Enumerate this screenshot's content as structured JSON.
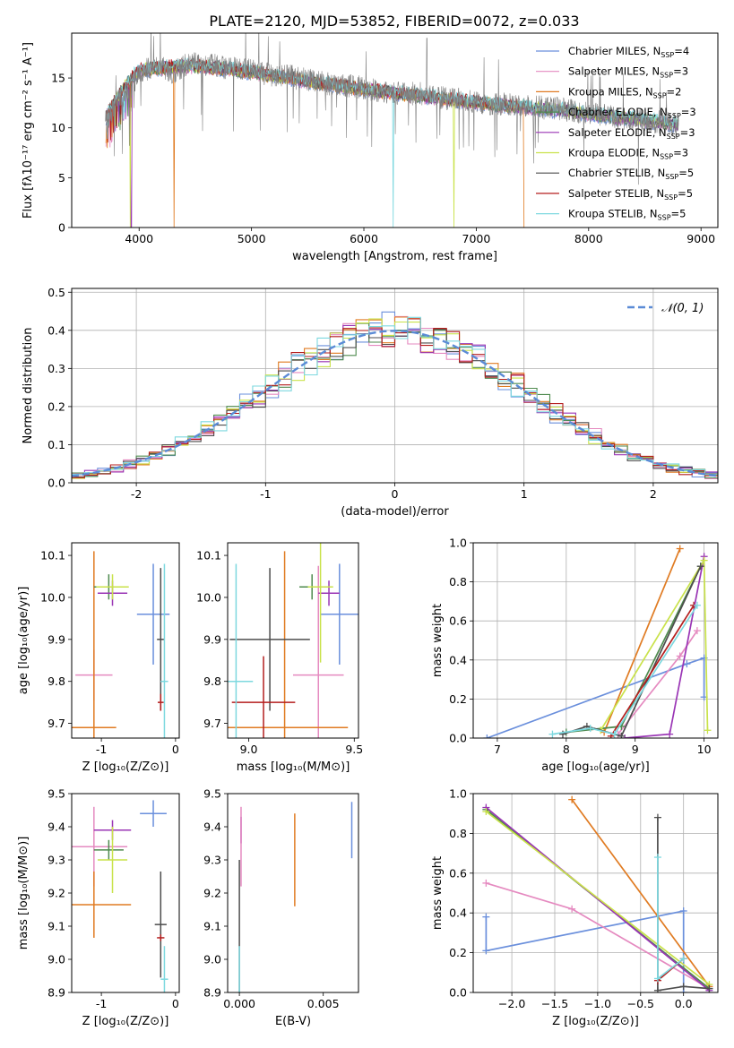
{
  "figure_title": "PLATE=2120, MJD=53852, FIBERID=0072, z=0.033",
  "colors": {
    "Chabrier MILES": "#6a8fdc",
    "Salpeter MILES": "#e58ac0",
    "Kroupa MILES": "#e07b22",
    "Chabrier ELODIE": "#4e8a4e",
    "Salpeter ELODIE": "#9a35b5",
    "Kroupa ELODIE": "#c9e24a",
    "Chabrier STELIB": "#4d4d4d",
    "Salpeter STELIB": "#b41e1e",
    "Kroupa STELIB": "#7dd8df"
  },
  "chart_data": [
    {
      "type": "line",
      "title": "PLATE=2120, MJD=53852, FIBERID=0072, z=0.033",
      "xlabel": "wavelength [Angstrom, rest frame]",
      "ylabel": "Flux [fλ10⁻¹⁷ erg cm⁻² s⁻¹ A⁻¹]",
      "xlim": [
        3400,
        9150
      ],
      "ylim": [
        0,
        19.5
      ],
      "xticks": [
        4000,
        5000,
        6000,
        7000,
        8000,
        9000
      ],
      "yticks": [
        0,
        5,
        10,
        15
      ],
      "legend_position": "top-right",
      "legend": [
        "Chabrier MILES, N_SSP=4",
        "Salpeter MILES, N_SSP=3",
        "Kroupa MILES, N_SSP=2",
        "Chabrier ELODIE, N_SSP=3",
        "Salpeter ELODIE, N_SSP=3",
        "Kroupa ELODIE, N_SSP=3",
        "Chabrier STELIB, N_SSP=5",
        "Salpeter STELIB, N_SSP=5",
        "Kroupa STELIB, N_SSP=5"
      ],
      "observed_spectrum": {
        "x": [
          3700,
          3800,
          3900,
          4000,
          4100,
          4200,
          4300,
          4400,
          4500,
          4600,
          4700,
          4800,
          4900,
          5000,
          5100,
          5200,
          5300,
          5400,
          5500,
          5600,
          5700,
          5800,
          5900,
          6000,
          6100,
          6200,
          6300,
          6400,
          6500,
          6600,
          6700,
          6800,
          6900,
          7000,
          7100,
          7200,
          7300,
          7400,
          7500,
          7600,
          7700,
          7800,
          7900,
          8000,
          8100,
          8200,
          8300,
          8400,
          8500,
          8600,
          8700,
          8800
        ],
        "y": [
          10.5,
          12.5,
          13.5,
          15.5,
          16.0,
          16.2,
          15.5,
          16.3,
          16.5,
          16.3,
          16.2,
          16.0,
          16.0,
          15.8,
          15.5,
          15.2,
          15.3,
          15.0,
          14.8,
          14.6,
          14.4,
          14.2,
          14.2,
          14.0,
          13.8,
          13.6,
          13.5,
          13.4,
          13.5,
          13.2,
          13.0,
          12.9,
          12.8,
          12.6,
          12.4,
          12.4,
          12.3,
          12.2,
          12.2,
          12.0,
          12.0,
          11.8,
          11.6,
          11.5,
          11.4,
          11.2,
          11.0,
          11.0,
          10.8,
          10.6,
          10.5,
          10.2
        ]
      },
      "model_spectrum": {
        "x": [
          3700,
          3800,
          3900,
          4000,
          4200,
          4400,
          4600,
          4800,
          5000,
          5200,
          5400,
          5600,
          5800,
          6000,
          6200,
          6400,
          6600,
          6800,
          7000,
          7200,
          7400,
          7600,
          7800,
          8000,
          8200,
          8400,
          8600,
          8800
        ],
        "y": [
          11.0,
          13.0,
          14.5,
          15.8,
          16.0,
          16.2,
          16.1,
          15.9,
          15.6,
          15.2,
          14.9,
          14.5,
          14.2,
          13.9,
          13.6,
          13.3,
          13.1,
          12.8,
          12.5,
          12.3,
          12.1,
          11.9,
          11.7,
          11.4,
          11.1,
          10.9,
          10.6,
          10.3
        ]
      }
    },
    {
      "type": "line",
      "xlabel": "(data-model)/error",
      "ylabel": "Normed distribution",
      "xlim": [
        -2.5,
        2.5
      ],
      "ylim": [
        0,
        0.51
      ],
      "xticks": [
        -2,
        -1,
        0,
        1,
        2
      ],
      "yticks": [
        0.0,
        0.1,
        0.2,
        0.3,
        0.4,
        0.5
      ],
      "grid": true,
      "legend_position": "top-right",
      "legend": [
        "𝒩(0, 1)"
      ],
      "reference_curve": "normal(0,1)",
      "histogram_bin_width": 0.1,
      "histogram_bins_x": [
        -2.5,
        -2.4,
        -2.3,
        -2.2,
        -2.1,
        -2.0,
        -1.9,
        -1.8,
        -1.7,
        -1.6,
        -1.5,
        -1.4,
        -1.3,
        -1.2,
        -1.1,
        -1.0,
        -0.9,
        -0.8,
        -0.7,
        -0.6,
        -0.5,
        -0.4,
        -0.3,
        -0.2,
        -0.1,
        0.0,
        0.1,
        0.2,
        0.3,
        0.4,
        0.5,
        0.6,
        0.7,
        0.8,
        0.9,
        1.0,
        1.1,
        1.2,
        1.3,
        1.4,
        1.5,
        1.6,
        1.7,
        1.8,
        1.9,
        2.0,
        2.1,
        2.2,
        2.3,
        2.4
      ]
    },
    {
      "type": "scatter",
      "xlabel": "Z [log₁₀(Z/Z⊙)]",
      "ylabel": "age  [log₁₀(age/yr)]",
      "xlim": [
        -1.4,
        0.05
      ],
      "ylim": [
        9.665,
        10.13
      ],
      "xticks": [
        -1,
        0
      ],
      "yticks": [
        9.7,
        9.8,
        9.9,
        10.0,
        10.1
      ],
      "points": [
        {
          "model": "Chabrier MILES",
          "x": -0.3,
          "y": 9.96,
          "xerr": 0.22,
          "yerr": 0.12
        },
        {
          "model": "Salpeter MILES",
          "x": -1.1,
          "y": 9.815,
          "xerr": 0.25,
          "yerr": 0.06
        },
        {
          "model": "Kroupa MILES",
          "x": -1.1,
          "y": 9.69,
          "xerr": 0.3,
          "yerr": 0.42
        },
        {
          "model": "Chabrier ELODIE",
          "x": -0.9,
          "y": 10.025,
          "xerr": 0.2,
          "yerr": 0.03
        },
        {
          "model": "Salpeter ELODIE",
          "x": -0.85,
          "y": 10.01,
          "xerr": 0.2,
          "yerr": 0.03
        },
        {
          "model": "Kroupa ELODIE",
          "x": -0.85,
          "y": 10.025,
          "xerr": 0.22,
          "yerr": 0.03
        },
        {
          "model": "Chabrier STELIB",
          "x": -0.2,
          "y": 9.9,
          "xerr": 0.05,
          "yerr": 0.17
        },
        {
          "model": "Salpeter STELIB",
          "x": -0.2,
          "y": 9.75,
          "xerr": 0.04,
          "yerr": 0.02
        },
        {
          "model": "Kroupa STELIB",
          "x": -0.15,
          "y": 9.8,
          "xerr": 0.05,
          "yerr": 0.28
        }
      ]
    },
    {
      "type": "scatter",
      "xlabel": "mass [log₁₀(M/M⊙)]",
      "ylabel": "",
      "xlim": [
        8.9,
        9.52
      ],
      "ylim": [
        9.665,
        10.13
      ],
      "xticks": [
        9.0,
        9.5
      ],
      "yticks": [
        9.7,
        9.8,
        9.9,
        10.0,
        10.1
      ],
      "points": [
        {
          "model": "Chabrier MILES",
          "x": 9.43,
          "y": 9.96,
          "xerr": 0.09,
          "yerr": 0.12
        },
        {
          "model": "Salpeter MILES",
          "x": 9.33,
          "y": 9.815,
          "xerr": 0.12,
          "yerr": 0.26
        },
        {
          "model": "Kroupa MILES",
          "x": 9.17,
          "y": 9.69,
          "xerr": 0.3,
          "yerr": 0.42
        },
        {
          "model": "Chabrier ELODIE",
          "x": 9.3,
          "y": 10.025,
          "xerr": 0.06,
          "yerr": 0.03
        },
        {
          "model": "Salpeter ELODIE",
          "x": 9.38,
          "y": 10.01,
          "xerr": 0.05,
          "yerr": 0.03
        },
        {
          "model": "Kroupa ELODIE",
          "x": 9.34,
          "y": 10.025,
          "xerr": 0.06,
          "yerr": 0.18
        },
        {
          "model": "Chabrier STELIB",
          "x": 9.1,
          "y": 9.9,
          "xerr": 0.19,
          "yerr": 0.17
        },
        {
          "model": "Salpeter STELIB",
          "x": 9.07,
          "y": 9.75,
          "xerr": 0.15,
          "yerr": 0.11
        },
        {
          "model": "Kroupa STELIB",
          "x": 8.94,
          "y": 9.8,
          "xerr": 0.08,
          "yerr": 0.28
        }
      ]
    },
    {
      "type": "line",
      "xlabel": "age  [log₁₀(age/yr)]",
      "ylabel": "mass weight",
      "xlim": [
        6.65,
        10.2
      ],
      "ylim": [
        0,
        1.0
      ],
      "xticks": [
        7,
        8,
        9,
        10
      ],
      "yticks": [
        0.0,
        0.2,
        0.4,
        0.6,
        0.8,
        1.0
      ],
      "grid": true,
      "series": [
        {
          "model": "Chabrier MILES",
          "x": [
            6.85,
            9.75,
            10.0,
            10.0
          ],
          "y": [
            0.0,
            0.38,
            0.41,
            0.21
          ]
        },
        {
          "model": "Salpeter MILES",
          "x": [
            8.75,
            9.65,
            9.9
          ],
          "y": [
            0.02,
            0.42,
            0.55
          ]
        },
        {
          "model": "Kroupa MILES",
          "x": [
            8.55,
            9.65
          ],
          "y": [
            0.03,
            0.97
          ]
        },
        {
          "model": "Chabrier ELODIE",
          "x": [
            8.0,
            8.8,
            9.95
          ],
          "y": [
            0.03,
            0.06,
            0.88
          ]
        },
        {
          "model": "Salpeter ELODIE",
          "x": [
            8.85,
            9.5,
            10.0
          ],
          "y": [
            0.0,
            0.02,
            0.93
          ]
        },
        {
          "model": "Kroupa ELODIE",
          "x": [
            8.5,
            10.0,
            10.05
          ],
          "y": [
            0.04,
            0.91,
            0.04
          ]
        },
        {
          "model": "Chabrier STELIB",
          "x": [
            7.95,
            8.3,
            8.8,
            9.95
          ],
          "y": [
            0.02,
            0.06,
            0.01,
            0.88
          ]
        },
        {
          "model": "Salpeter STELIB",
          "x": [
            8.65,
            9.85
          ],
          "y": [
            0.01,
            0.68
          ]
        },
        {
          "model": "Kroupa STELIB",
          "x": [
            7.8,
            8.35,
            8.7,
            9.9
          ],
          "y": [
            0.02,
            0.05,
            0.02,
            0.68
          ]
        }
      ]
    },
    {
      "type": "scatter",
      "xlabel": "Z [log₁₀(Z/Z⊙)]",
      "ylabel": "mass [log₁₀(M/M⊙)]",
      "xlim": [
        -1.4,
        0.05
      ],
      "ylim": [
        8.9,
        9.5
      ],
      "xticks": [
        -1,
        0
      ],
      "yticks": [
        8.9,
        9.0,
        9.1,
        9.2,
        9.3,
        9.4,
        9.5
      ],
      "points": [
        {
          "model": "Chabrier MILES",
          "x": -0.3,
          "y": 9.44,
          "xerr": 0.18,
          "yerr": 0.04
        },
        {
          "model": "Salpeter MILES",
          "x": -1.1,
          "y": 9.34,
          "xerr": 0.45,
          "yerr": 0.12
        },
        {
          "model": "Kroupa MILES",
          "x": -1.1,
          "y": 9.165,
          "xerr": 0.5,
          "yerr": 0.1
        },
        {
          "model": "Chabrier ELODIE",
          "x": -0.9,
          "y": 9.33,
          "xerr": 0.2,
          "yerr": 0.03
        },
        {
          "model": "Salpeter ELODIE",
          "x": -0.85,
          "y": 9.39,
          "xerr": 0.25,
          "yerr": 0.03
        },
        {
          "model": "Kroupa ELODIE",
          "x": -0.85,
          "y": 9.3,
          "xerr": 0.2,
          "yerr": 0.1
        },
        {
          "model": "Chabrier STELIB",
          "x": -0.2,
          "y": 9.105,
          "xerr": 0.08,
          "yerr": 0.16
        },
        {
          "model": "Salpeter STELIB",
          "x": -0.2,
          "y": 9.065,
          "xerr": 0.05,
          "yerr": 0.01
        },
        {
          "model": "Kroupa STELIB",
          "x": -0.15,
          "y": 8.94,
          "xerr": 0.05,
          "yerr": 0.1
        }
      ]
    },
    {
      "type": "scatter",
      "xlabel": "E(B-V)",
      "ylabel": "",
      "xlim": [
        -0.0007,
        0.0071
      ],
      "ylim": [
        8.9,
        9.5
      ],
      "xticks": [
        0.0,
        0.005
      ],
      "yticks": [
        8.9,
        9.0,
        9.1,
        9.2,
        9.3,
        9.4,
        9.5
      ],
      "points": [
        {
          "model": "Chabrier MILES",
          "x": 0.0067,
          "y": 9.39,
          "xerr": 0.0,
          "yerr": 0.085
        },
        {
          "model": "Kroupa MILES",
          "x": 0.0033,
          "y": 9.3,
          "xerr": 0.0,
          "yerr": 0.14
        },
        {
          "model": "Salpeter ELODIE",
          "x": 0.0001,
          "y": 9.39,
          "xerr": 0.0,
          "yerr": 0.04
        },
        {
          "model": "Salpeter MILES",
          "x": 0.0001,
          "y": 9.34,
          "xerr": 0.0,
          "yerr": 0.12
        },
        {
          "model": "Chabrier STELIB",
          "x": 0.0,
          "y": 9.1,
          "xerr": 0.0,
          "yerr": 0.2
        },
        {
          "model": "Kroupa STELIB",
          "x": 0.0,
          "y": 8.94,
          "xerr": 0.0,
          "yerr": 0.1
        }
      ]
    },
    {
      "type": "line",
      "xlabel": "Z [log₁₀(Z/Z⊙)]",
      "ylabel": "mass weight",
      "xlim": [
        -2.45,
        0.4
      ],
      "ylim": [
        0,
        1.0
      ],
      "xticks": [
        -2.0,
        -1.5,
        -1.0,
        -0.5,
        0.0
      ],
      "yticks": [
        0.0,
        0.2,
        0.4,
        0.6,
        0.8,
        1.0
      ],
      "grid": true,
      "series": [
        {
          "model": "Chabrier MILES",
          "x": [
            -2.3,
            -2.3,
            0.0,
            0.0
          ],
          "y": [
            0.38,
            0.21,
            0.41,
            0.0
          ]
        },
        {
          "model": "Salpeter MILES",
          "x": [
            -2.3,
            -1.3,
            0.3
          ],
          "y": [
            0.55,
            0.42,
            0.02
          ]
        },
        {
          "model": "Kroupa MILES",
          "x": [
            -1.3,
            0.3
          ],
          "y": [
            0.97,
            0.03
          ]
        },
        {
          "model": "Chabrier ELODIE",
          "x": [
            -2.3,
            0.3
          ],
          "y": [
            0.92,
            0.02
          ]
        },
        {
          "model": "Salpeter ELODIE",
          "x": [
            -2.3,
            0.3
          ],
          "y": [
            0.93,
            0.01
          ]
        },
        {
          "model": "Kroupa ELODIE",
          "x": [
            -2.3,
            0.3
          ],
          "y": [
            0.91,
            0.04
          ]
        },
        {
          "model": "Chabrier STELIB",
          "x": [
            -0.3,
            -0.3,
            0.0,
            0.3
          ],
          "y": [
            0.88,
            0.01,
            0.03,
            0.02
          ]
        },
        {
          "model": "Salpeter STELIB",
          "x": [
            -0.3,
            0.0
          ],
          "y": [
            0.06,
            0.17
          ]
        },
        {
          "model": "Kroupa STELIB",
          "x": [
            -0.3,
            -0.3,
            0.0
          ],
          "y": [
            0.68,
            0.07,
            0.17
          ]
        }
      ]
    }
  ]
}
